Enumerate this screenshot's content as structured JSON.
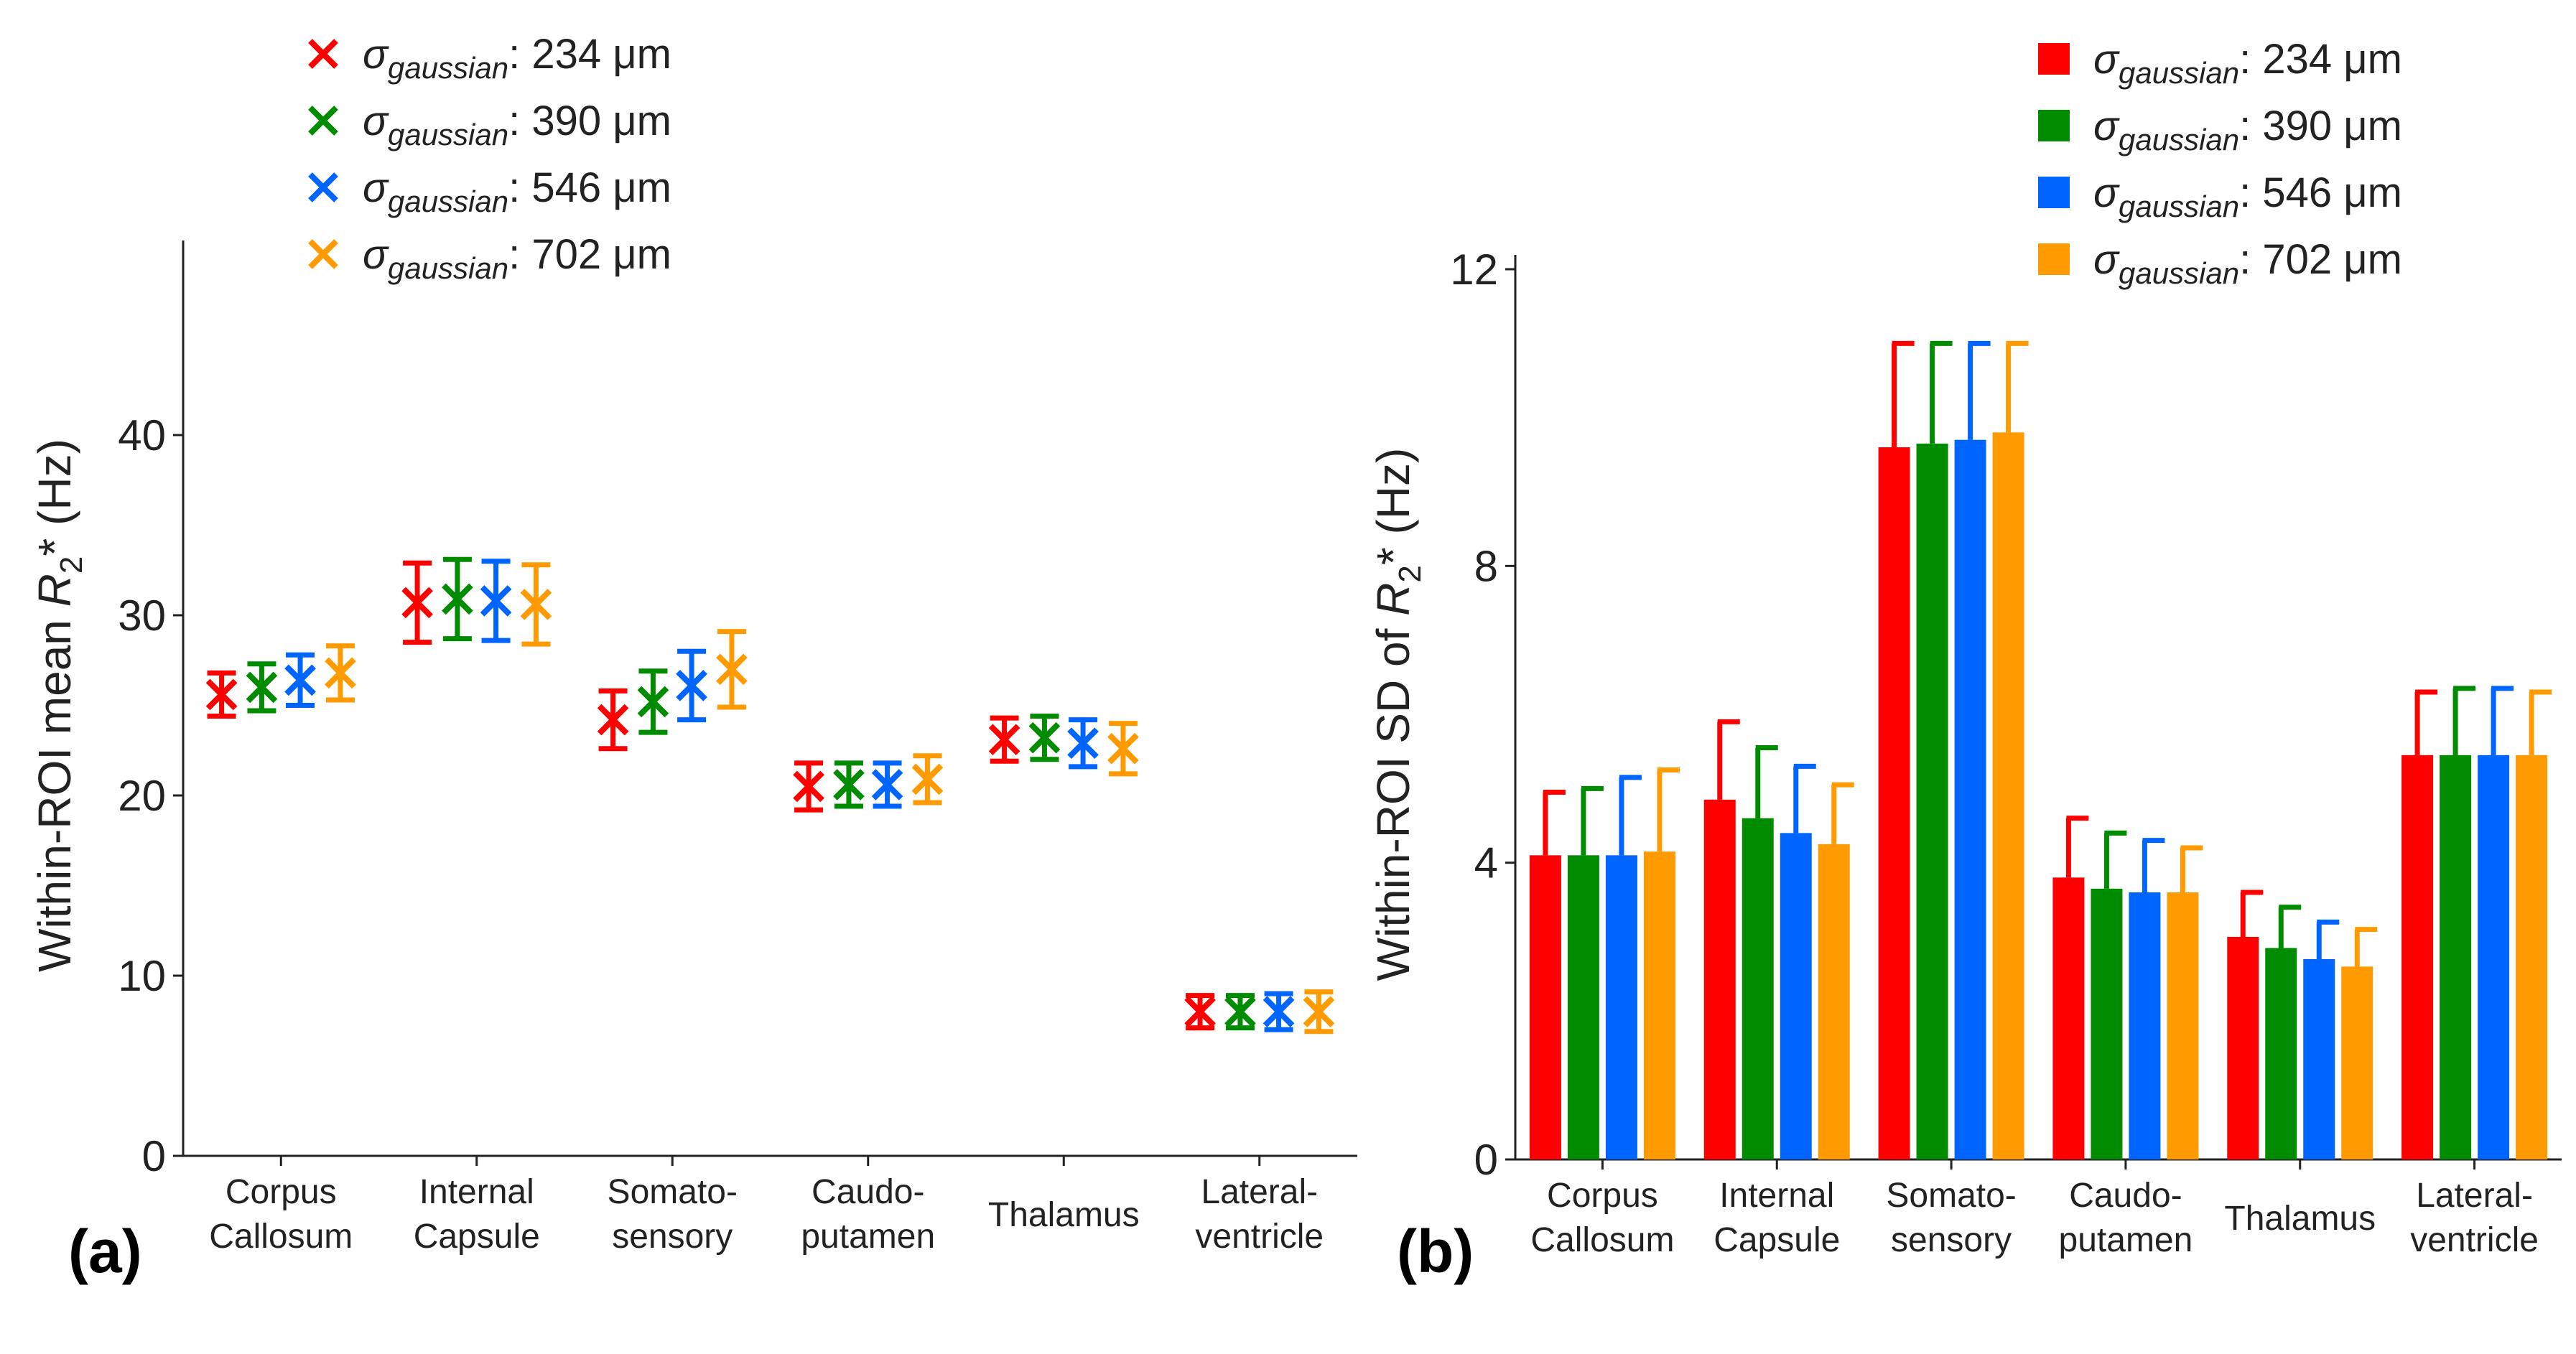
{
  "colors": [
    "#ff0000",
    "#008c00",
    "#0064ff",
    "#ff9b00"
  ],
  "legend": [
    {
      "sigma": "σ",
      "sub": "gaussian",
      "value": ": 234 μm"
    },
    {
      "sigma": "σ",
      "sub": "gaussian",
      "value": ": 390 μm"
    },
    {
      "sigma": "σ",
      "sub": "gaussian",
      "value": ": 546 μm"
    },
    {
      "sigma": "σ",
      "sub": "gaussian",
      "value": ": 702 μm"
    }
  ],
  "panel_labels": {
    "a": "(a)",
    "b": "(b)"
  },
  "chart_data": [
    {
      "type": "scatter",
      "panel": "(a)",
      "title": "",
      "ylabel_parts": {
        "pre": "Within-ROI mean ",
        "r": "R",
        "sub": "2",
        "post": "* (Hz)"
      },
      "ylim": [
        0,
        50
      ],
      "yticks": [
        0,
        10,
        20,
        30,
        40
      ],
      "categories": [
        [
          "Corpus",
          "Callosum"
        ],
        [
          "Internal",
          "Capsule"
        ],
        [
          "Somato-",
          "sensory"
        ],
        [
          "Caudo-",
          "putamen"
        ],
        [
          "Thalamus"
        ],
        [
          "Lateral-",
          "ventricle"
        ]
      ],
      "series": [
        {
          "name": "σgaussian: 234 μm",
          "values": [
            25.6,
            30.7,
            24.2,
            20.5,
            23.1,
            8.0
          ],
          "errors": [
            1.2,
            2.2,
            1.6,
            1.3,
            1.2,
            0.9
          ]
        },
        {
          "name": "σgaussian: 390 μm",
          "values": [
            26.0,
            30.9,
            25.2,
            20.6,
            23.2,
            8.0
          ],
          "errors": [
            1.3,
            2.2,
            1.7,
            1.2,
            1.2,
            0.9
          ]
        },
        {
          "name": "σgaussian: 546 μm",
          "values": [
            26.4,
            30.8,
            26.1,
            20.6,
            22.9,
            8.0
          ],
          "errors": [
            1.4,
            2.2,
            1.9,
            1.2,
            1.3,
            1.0
          ]
        },
        {
          "name": "σgaussian: 702 μm",
          "values": [
            26.8,
            30.6,
            27.0,
            20.9,
            22.6,
            8.0
          ],
          "errors": [
            1.5,
            2.2,
            2.1,
            1.3,
            1.4,
            1.1
          ]
        }
      ]
    },
    {
      "type": "bar",
      "panel": "(b)",
      "title": "",
      "ylabel_parts": {
        "pre": "Within-ROI SD of ",
        "r": "R",
        "sub": "2",
        "post": "* (Hz)"
      },
      "ylim": [
        0,
        12
      ],
      "yticks": [
        0,
        4,
        8,
        12
      ],
      "categories": [
        [
          "Corpus",
          "Callosum"
        ],
        [
          "Internal",
          "Capsule"
        ],
        [
          "Somato-",
          "sensory"
        ],
        [
          "Caudo-",
          "putamen"
        ],
        [
          "Thalamus"
        ],
        [
          "Lateral-",
          "ventricle"
        ]
      ],
      "series": [
        {
          "name": "σgaussian: 234 μm",
          "values": [
            4.1,
            4.85,
            9.6,
            3.8,
            3.0,
            5.45
          ],
          "errors": [
            0.85,
            1.05,
            1.4,
            0.8,
            0.6,
            0.85
          ]
        },
        {
          "name": "σgaussian: 390 μm",
          "values": [
            4.1,
            4.6,
            9.65,
            3.65,
            2.85,
            5.45
          ],
          "errors": [
            0.9,
            0.95,
            1.35,
            0.75,
            0.55,
            0.9
          ]
        },
        {
          "name": "σgaussian: 546 μm",
          "values": [
            4.1,
            4.4,
            9.7,
            3.6,
            2.7,
            5.45
          ],
          "errors": [
            1.05,
            0.9,
            1.3,
            0.7,
            0.5,
            0.9
          ]
        },
        {
          "name": "σgaussian: 702 μm",
          "values": [
            4.15,
            4.25,
            9.8,
            3.6,
            2.6,
            5.45
          ],
          "errors": [
            1.1,
            0.8,
            1.2,
            0.6,
            0.5,
            0.85
          ]
        }
      ]
    }
  ]
}
